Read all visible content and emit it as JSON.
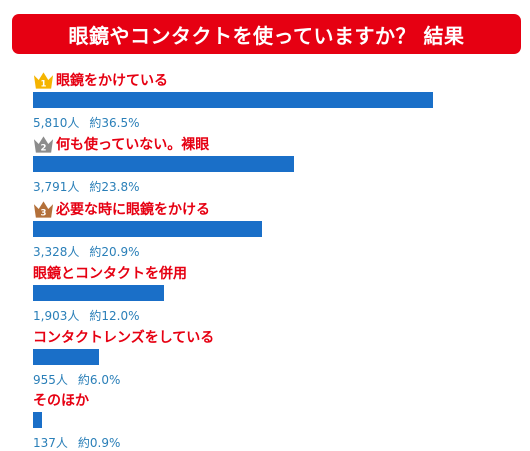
{
  "title": "眼鏡やコンタクトを使っていますか？ 結果",
  "colors": {
    "title_bg": "#e60012",
    "label": "#e60012",
    "bar": "#1a6fc8",
    "stat": "#2a7fb8"
  },
  "chart_data": {
    "type": "bar",
    "orientation": "horizontal",
    "title": "眼鏡やコンタクトを使っていますか？ 結果",
    "categories": [
      "眼鏡をかけている",
      "何も使っていない。裸眼",
      "必要な時に眼鏡をかける",
      "眼鏡とコンタクトを併用",
      "コンタクトレンズをしている",
      "そのほか"
    ],
    "values": [
      5810,
      3791,
      3328,
      1903,
      955,
      137
    ],
    "count_labels": [
      "5,810人",
      "3,791人",
      "3,328人",
      "1,903人",
      "955人",
      "137人"
    ],
    "percent_labels": [
      "約36.5%",
      "約23.8%",
      "約20.9%",
      "約12.0%",
      "約6.0%",
      "約0.9%"
    ],
    "ranks": [
      "1",
      "2",
      "3",
      "",
      "",
      ""
    ],
    "crown_colors": [
      "#f5b400",
      "#8c8c8c",
      "#b3703a",
      "",
      "",
      ""
    ]
  }
}
